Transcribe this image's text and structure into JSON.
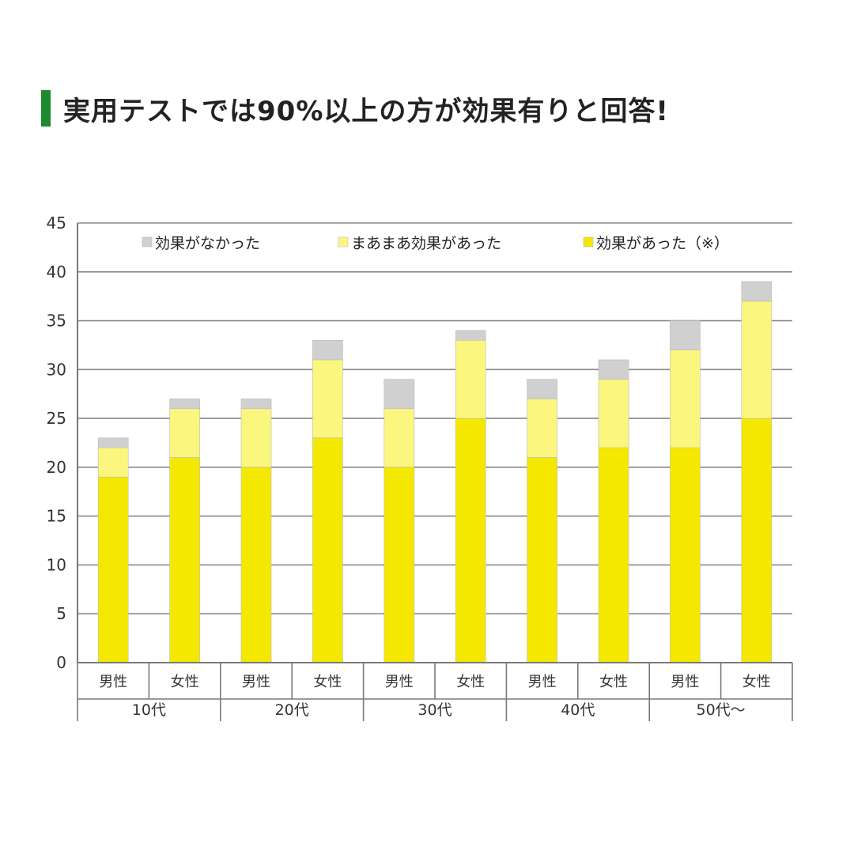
{
  "title": "実用テストでは90%以上の方が効果有りと回答!",
  "colors": {
    "title_bar": "#1e8a2e",
    "effective": "#f5e800",
    "somewhat_effective": "#fbf67e",
    "not_effective": "#d0d0d0",
    "grid": "#8a8a8a",
    "axis": "#7a7a7a"
  },
  "chart_data": {
    "type": "bar",
    "stacked": true,
    "categories": [
      "男性",
      "女性",
      "男性",
      "女性",
      "男性",
      "女性",
      "男性",
      "女性",
      "男性",
      "女性"
    ],
    "groups": [
      {
        "label": "10代",
        "span": 2
      },
      {
        "label": "20代",
        "span": 2
      },
      {
        "label": "30代",
        "span": 2
      },
      {
        "label": "40代",
        "span": 2
      },
      {
        "label": "50代〜",
        "span": 2
      }
    ],
    "series": [
      {
        "name": "効果があった（※）",
        "color": "#f5e800",
        "values": [
          19,
          21,
          20,
          23,
          20,
          25,
          21,
          22,
          22,
          25
        ]
      },
      {
        "name": "まあまあ効果があった",
        "color": "#fbf67e",
        "values": [
          3,
          5,
          6,
          8,
          6,
          8,
          6,
          7,
          10,
          12
        ]
      },
      {
        "name": "効果がなかった",
        "color": "#d0d0d0",
        "values": [
          1,
          1,
          1,
          2,
          3,
          1,
          2,
          2,
          3,
          2
        ]
      }
    ],
    "legend_order": [
      "効果がなかった",
      "まあまあ効果があった",
      "効果があった（※）"
    ],
    "legend_position": "top",
    "ylim": [
      0,
      45
    ],
    "yticks": [
      0,
      5,
      10,
      15,
      20,
      25,
      30,
      35,
      40,
      45
    ],
    "grid": true
  }
}
